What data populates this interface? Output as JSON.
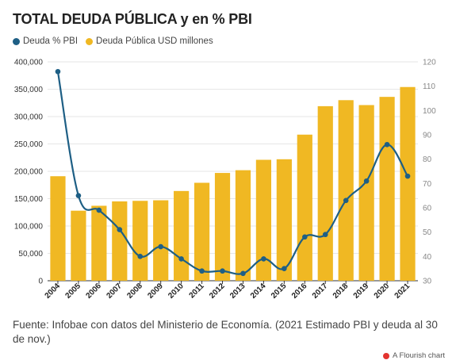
{
  "title": "TOTAL DEUDA PÚBLICA y en % PBI",
  "footer": "Fuente: Infobae con datos del Ministerio de Economía. (2021 Estimado PBI y deuda al 30 de nov.)",
  "credit": "A Flourish chart",
  "colors": {
    "line": "#1e5f85",
    "bar": "#f0b823",
    "grid": "#e6e6e6",
    "flourish": "#e3342f"
  },
  "chart_data": {
    "type": "bar",
    "categories": [
      "2004",
      "2005",
      "2006",
      "2007",
      "2008",
      "2009",
      "2010",
      "2011",
      "2012",
      "2013",
      "2014",
      "2015",
      "2016",
      "2017",
      "2018",
      "2019",
      "2020",
      "2021"
    ],
    "series": [
      {
        "name": "Deuda % PBI",
        "type": "line",
        "axis": "right",
        "values": [
          116,
          65,
          59,
          51,
          40,
          44,
          39,
          34,
          34,
          33,
          39,
          35,
          48,
          49,
          63,
          71,
          86,
          73
        ]
      },
      {
        "name": "Deuda Pública USD millones",
        "type": "bar",
        "axis": "left",
        "values": [
          191000,
          128000,
          137000,
          145000,
          146000,
          147000,
          164000,
          179000,
          197000,
          202000,
          221000,
          222000,
          267000,
          319000,
          330000,
          321000,
          336000,
          354000
        ]
      }
    ],
    "ylim_left": [
      0,
      400000
    ],
    "yticks_left": [
      "0",
      "50,000",
      "100,000",
      "150,000",
      "200,000",
      "250,000",
      "300,000",
      "350,000",
      "400,000"
    ],
    "ylim_right": [
      30,
      120
    ],
    "yticks_right": [
      "30",
      "40",
      "50",
      "60",
      "70",
      "80",
      "90",
      "100",
      "110",
      "120"
    ],
    "legend_position": "top-left",
    "grid": true
  }
}
